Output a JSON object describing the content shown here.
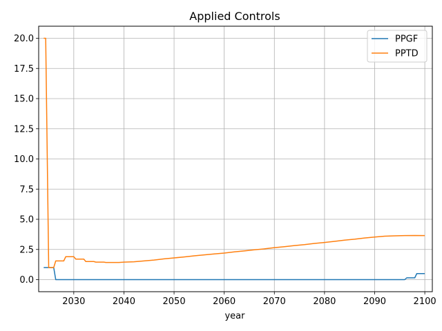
{
  "chart_data": {
    "type": "line",
    "title": "Applied Controls",
    "xlabel": "year",
    "ylabel": "",
    "xlim": [
      2023,
      2101.5
    ],
    "ylim": [
      -1.0,
      21.0
    ],
    "x_ticks": [
      2030,
      2040,
      2050,
      2060,
      2070,
      2080,
      2090,
      2100
    ],
    "y_ticks": [
      0.0,
      2.5,
      5.0,
      7.5,
      10.0,
      12.5,
      15.0,
      17.5,
      20.0
    ],
    "y_tick_labels": [
      "0.0",
      "2.5",
      "5.0",
      "7.5",
      "10.0",
      "12.5",
      "15.0",
      "17.5",
      "20.0"
    ],
    "grid": true,
    "legend_position": "top-right",
    "series": [
      {
        "name": "PPGF",
        "color": "#1f77b4",
        "points": [
          [
            2024,
            1.0
          ],
          [
            2025,
            1.0
          ],
          [
            2025.6,
            1.0
          ],
          [
            2026,
            1.0
          ],
          [
            2026.4,
            0.0
          ],
          [
            2030,
            0.0
          ],
          [
            2040,
            0.0
          ],
          [
            2050,
            0.0
          ],
          [
            2060,
            0.0
          ],
          [
            2070,
            0.0
          ],
          [
            2080,
            0.0
          ],
          [
            2090,
            0.0
          ],
          [
            2096,
            0.0
          ],
          [
            2096.4,
            0.15
          ],
          [
            2098,
            0.15
          ],
          [
            2098.4,
            0.5
          ],
          [
            2100,
            0.5
          ]
        ]
      },
      {
        "name": "PPTD",
        "color": "#ff7f0e",
        "points": [
          [
            2024,
            20.0
          ],
          [
            2024.4,
            20.0
          ],
          [
            2025,
            1.0
          ],
          [
            2026,
            1.0
          ],
          [
            2026.4,
            1.55
          ],
          [
            2028,
            1.55
          ],
          [
            2028.4,
            1.9
          ],
          [
            2030,
            1.9
          ],
          [
            2030.4,
            1.7
          ],
          [
            2032,
            1.7
          ],
          [
            2032.4,
            1.5
          ],
          [
            2034,
            1.5
          ],
          [
            2034.4,
            1.45
          ],
          [
            2036,
            1.45
          ],
          [
            2036.4,
            1.42
          ],
          [
            2039,
            1.42
          ],
          [
            2040,
            1.45
          ],
          [
            2042,
            1.48
          ],
          [
            2044,
            1.55
          ],
          [
            2046,
            1.62
          ],
          [
            2048,
            1.72
          ],
          [
            2050,
            1.8
          ],
          [
            2052,
            1.88
          ],
          [
            2054,
            1.97
          ],
          [
            2056,
            2.05
          ],
          [
            2058,
            2.13
          ],
          [
            2060,
            2.2
          ],
          [
            2062,
            2.3
          ],
          [
            2064,
            2.38
          ],
          [
            2066,
            2.47
          ],
          [
            2068,
            2.55
          ],
          [
            2070,
            2.65
          ],
          [
            2072,
            2.73
          ],
          [
            2074,
            2.82
          ],
          [
            2076,
            2.9
          ],
          [
            2078,
            3.0
          ],
          [
            2080,
            3.08
          ],
          [
            2082,
            3.17
          ],
          [
            2084,
            3.27
          ],
          [
            2086,
            3.35
          ],
          [
            2088,
            3.45
          ],
          [
            2090,
            3.53
          ],
          [
            2092,
            3.6
          ],
          [
            2094,
            3.63
          ],
          [
            2096,
            3.65
          ],
          [
            2098,
            3.66
          ],
          [
            2100,
            3.65
          ]
        ]
      }
    ]
  }
}
